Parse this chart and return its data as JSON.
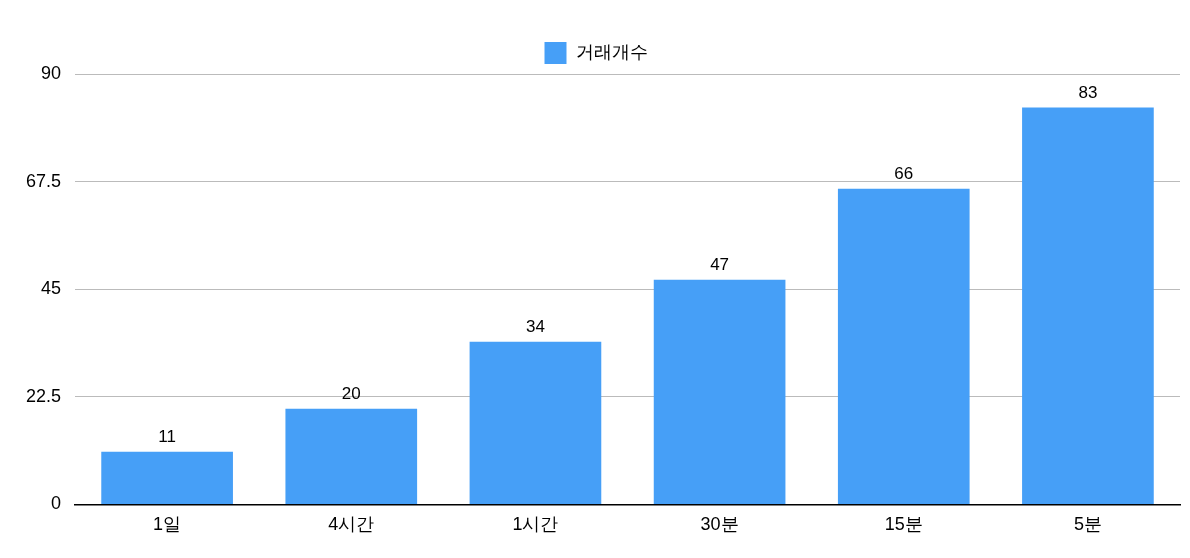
{
  "chart_data": {
    "type": "bar",
    "categories": [
      "1일",
      "4시간",
      "1시간",
      "30분",
      "15분",
      "5분"
    ],
    "series": [
      {
        "name": "거래개수",
        "color": "#469ff7",
        "values": [
          11,
          20,
          34,
          47,
          66,
          83
        ]
      }
    ],
    "ylim": [
      0,
      90
    ],
    "yticks": [
      0,
      22.5,
      45,
      67.5,
      90
    ],
    "grid": "y",
    "legend": "top",
    "data_labels": true
  }
}
